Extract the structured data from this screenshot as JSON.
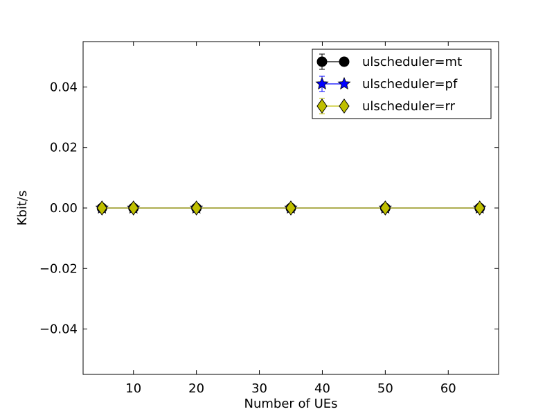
{
  "chart_data": {
    "type": "line",
    "title": "",
    "xlabel": "Number of UEs",
    "ylabel": "Kbit/s",
    "xlim": [
      2,
      68
    ],
    "ylim": [
      -0.055,
      0.055
    ],
    "xticks": [
      10,
      20,
      30,
      40,
      50,
      60
    ],
    "yticks": [
      -0.04,
      -0.02,
      0.0,
      0.02,
      0.04
    ],
    "ytick_labels": [
      "−0.04",
      "−0.02",
      "0.00",
      "0.02",
      "0.04"
    ],
    "grid": false,
    "legend_position": "top-right",
    "x": [
      5,
      10,
      20,
      35,
      50,
      65
    ],
    "series": [
      {
        "name": "ulscheduler=mt",
        "marker": "circle",
        "color": "#000000",
        "values": [
          0,
          0,
          0,
          0,
          0,
          0
        ]
      },
      {
        "name": "ulscheduler=pf",
        "marker": "star",
        "color": "#0000ff",
        "values": [
          0,
          0,
          0,
          0,
          0,
          0
        ]
      },
      {
        "name": "ulscheduler=rr",
        "marker": "diamond",
        "color": "#bfbf00",
        "values": [
          0,
          0,
          0,
          0,
          0,
          0
        ]
      }
    ]
  }
}
